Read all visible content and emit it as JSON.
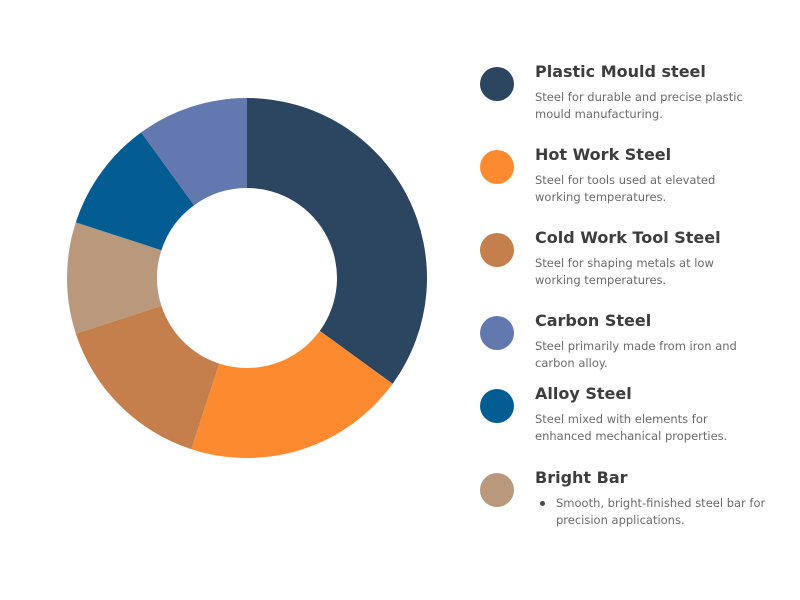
{
  "chart_data": {
    "type": "pie",
    "donut": true,
    "slices": [
      {
        "label": "Plastic Mould steel",
        "value": 35,
        "color": "#2c4560"
      },
      {
        "label": "Hot Work Steel",
        "value": 20,
        "color": "#fe8a2f"
      },
      {
        "label": "Cold Work Tool Steel",
        "value": 15,
        "color": "#c57f4c"
      },
      {
        "label": "Bright Bar",
        "value": 10,
        "color": "#b9987b"
      },
      {
        "label": "Alloy Steel",
        "value": 10,
        "color": "#035d92"
      },
      {
        "label": "Carbon Steel",
        "value": 10,
        "color": "#6478b0"
      }
    ],
    "legend_placement": "right"
  },
  "legend": [
    {
      "title": "Plastic Mould steel",
      "description": "Steel for durable and precise plastic mould manufacturing.",
      "color": "#2c4560",
      "bullet": false
    },
    {
      "title": "Hot Work Steel",
      "description": "Steel for tools used at elevated working temperatures.",
      "color": "#fe8a2f",
      "bullet": false
    },
    {
      "title": "Cold Work Tool Steel",
      "description": "Steel for shaping metals at low working temperatures.",
      "color": "#c57f4c",
      "bullet": false
    },
    {
      "title": "Carbon Steel",
      "description": "Steel primarily made from iron and carbon alloy.",
      "color": "#6478b0",
      "bullet": false
    },
    {
      "title": "Alloy Steel",
      "description": "Steel mixed with elements for enhanced mechanical properties.",
      "color": "#035d92",
      "bullet": false
    },
    {
      "title": "Bright Bar",
      "description": "Smooth, bright-finished steel bar for precision applications.",
      "color": "#b9987b",
      "bullet": true
    }
  ]
}
